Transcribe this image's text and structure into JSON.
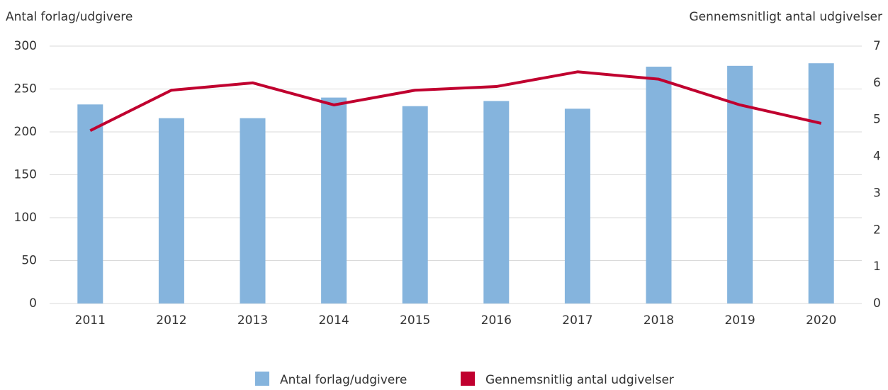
{
  "chart_data": {
    "type": "bar-line",
    "ylabel": "Antal forlag/udgivere",
    "y2label": "Gennemsnitligt antal udgivelser",
    "categories": [
      "2011",
      "2012",
      "2013",
      "2014",
      "2015",
      "2016",
      "2017",
      "2018",
      "2019",
      "2020"
    ],
    "series": [
      {
        "name": "Antal forlag/udgivere",
        "type": "bar",
        "color": "#85b4dd",
        "values": [
          232,
          216,
          216,
          240,
          230,
          236,
          227,
          276,
          277,
          280
        ]
      },
      {
        "name": "Gennemsnitlig antal udgivelser",
        "type": "line",
        "axis": "y2",
        "color": "#c0002f",
        "values": [
          4.7,
          5.8,
          6.0,
          5.4,
          5.8,
          5.9,
          6.3,
          6.1,
          5.4,
          4.9
        ]
      }
    ],
    "ylim": [
      0,
      300
    ],
    "yticks": [
      0,
      50,
      100,
      150,
      200,
      250,
      300
    ],
    "y2lim": [
      0,
      7
    ],
    "y2ticks": [
      0,
      1,
      2,
      3,
      4,
      5,
      6,
      7
    ],
    "grid": true,
    "legend": "bottom"
  }
}
